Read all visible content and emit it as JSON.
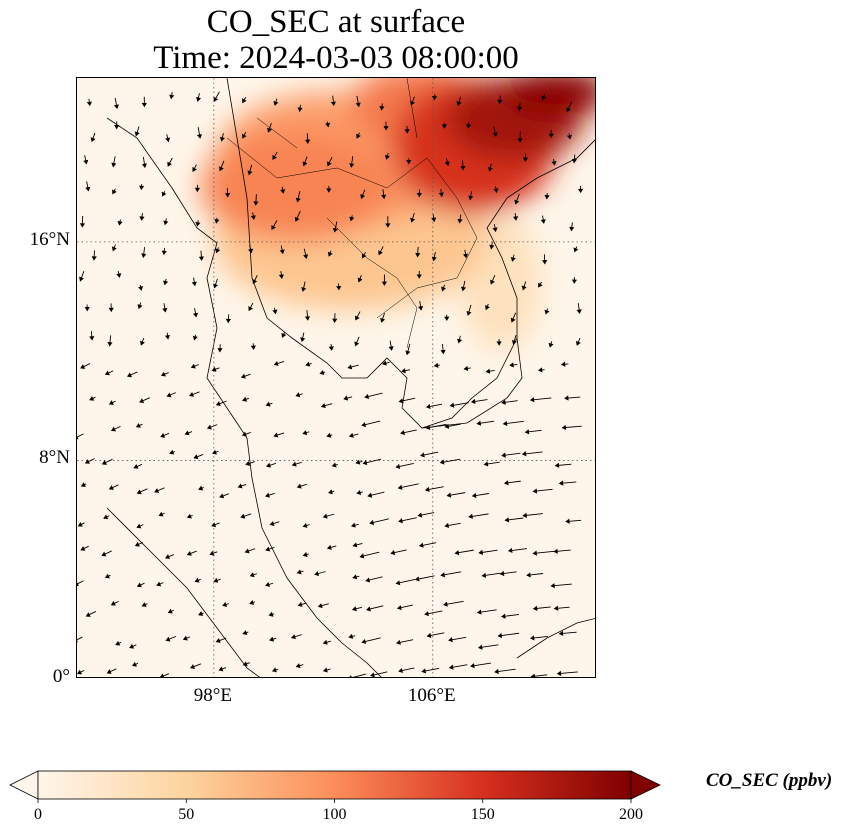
{
  "title_line1": "CO_SEC at surface",
  "title_line2": "Time: 2024-03-03 08:00:00",
  "lat_ticks": [
    {
      "label": "16°N",
      "value": 16
    },
    {
      "label": "8°N",
      "value": 8
    },
    {
      "label": "0°",
      "value": 0
    }
  ],
  "lon_ticks": [
    {
      "label": "98°E",
      "value": 98
    },
    {
      "label": "106°E",
      "value": 106
    }
  ],
  "map_extent": {
    "lon_min": 93,
    "lon_max": 112,
    "lat_min": 0,
    "lat_max": 22
  },
  "colorbar": {
    "label": "CO_SEC (ppbv)",
    "min": 0,
    "max": 200,
    "ticks": [
      "0",
      "50",
      "100",
      "150",
      "200"
    ],
    "colors": [
      "#fff5eb",
      "#fdd49e",
      "#fc8d59",
      "#d7301f",
      "#7f0000"
    ]
  },
  "concentration_regions": [
    {
      "lon": 102.5,
      "lat": 19.0,
      "rx": 4.5,
      "ry": 2.5,
      "value": 90
    },
    {
      "lon": 101.0,
      "lat": 18.0,
      "rx": 3.5,
      "ry": 2.0,
      "value": 105
    },
    {
      "lon": 103.0,
      "lat": 16.0,
      "rx": 5.0,
      "ry": 2.5,
      "value": 60
    },
    {
      "lon": 107.5,
      "lat": 19.5,
      "rx": 3.0,
      "ry": 2.5,
      "value": 150
    },
    {
      "lon": 109.0,
      "lat": 20.5,
      "rx": 2.5,
      "ry": 1.5,
      "value": 180
    },
    {
      "lon": 110.5,
      "lat": 21.5,
      "rx": 2.0,
      "ry": 0.8,
      "value": 195
    },
    {
      "lon": 105.5,
      "lat": 21.0,
      "rx": 2.5,
      "ry": 1.5,
      "value": 110
    },
    {
      "lon": 108.5,
      "lat": 14.5,
      "rx": 1.5,
      "ry": 2.5,
      "value": 30
    }
  ],
  "wind_vectors_shown": true
}
